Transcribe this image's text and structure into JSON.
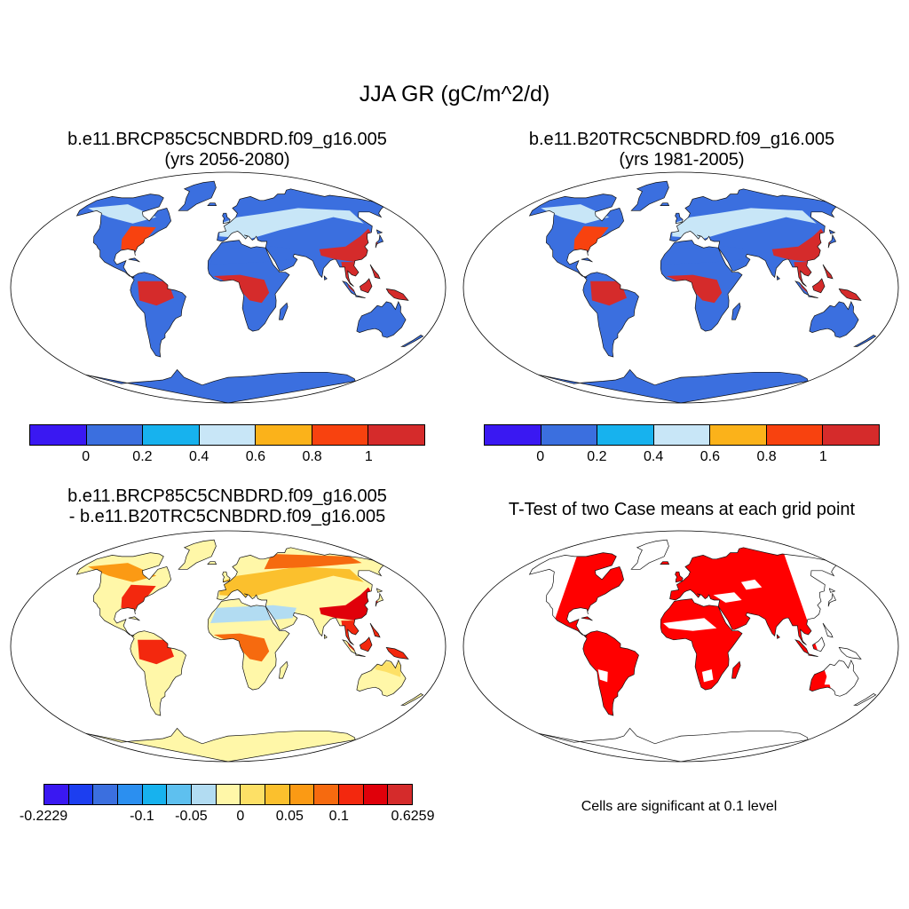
{
  "figure_title": "JJA GR (gC/m^2/d)",
  "panels": {
    "top_left": {
      "title_line1": "b.e11.BRCP85C5CNBDRD.f09_g16.005",
      "title_line2": "(yrs 2056-2080)"
    },
    "top_right": {
      "title_line1": "b.e11.B20TRC5CNBDRD.f09_g16.005",
      "title_line2": "(yrs 1981-2005)"
    },
    "bottom_left": {
      "title_line1": "b.e11.BRCP85C5CNBDRD.f09_g16.005",
      "title_line2": "- b.e11.B20TRC5CNBDRD.f09_g16.005"
    },
    "bottom_right": {
      "title": "T-Test of two Case means at each grid point",
      "note": "Cells are significant at 0.1 level"
    }
  },
  "colorbar_main": {
    "colors": [
      "#3a18f2",
      "#3b6fdf",
      "#17b2ee",
      "#c8e6f7",
      "#fbb21a",
      "#f8420f",
      "#d52b2b"
    ],
    "labels": [
      "0",
      "0.2",
      "0.4",
      "0.6",
      "0.8",
      "1"
    ]
  },
  "colorbar_diff": {
    "colors": [
      "#3a18f2",
      "#1c3ef0",
      "#3b6fdf",
      "#2b8ff0",
      "#17b2ee",
      "#5ec0ef",
      "#b2dcf2",
      "#fff7a8",
      "#fde066",
      "#fbc02d",
      "#fb9a14",
      "#f66a0f",
      "#f3280e",
      "#e0000a",
      "#d52b2b"
    ],
    "labels": [
      "-0.2229",
      "-0.1",
      "-0.05",
      "0",
      "0.05",
      "0.1",
      "0.6259"
    ]
  },
  "map_colors": {
    "ocean": "#ffffff",
    "coast": "#111111",
    "significant": "#ff0000"
  }
}
